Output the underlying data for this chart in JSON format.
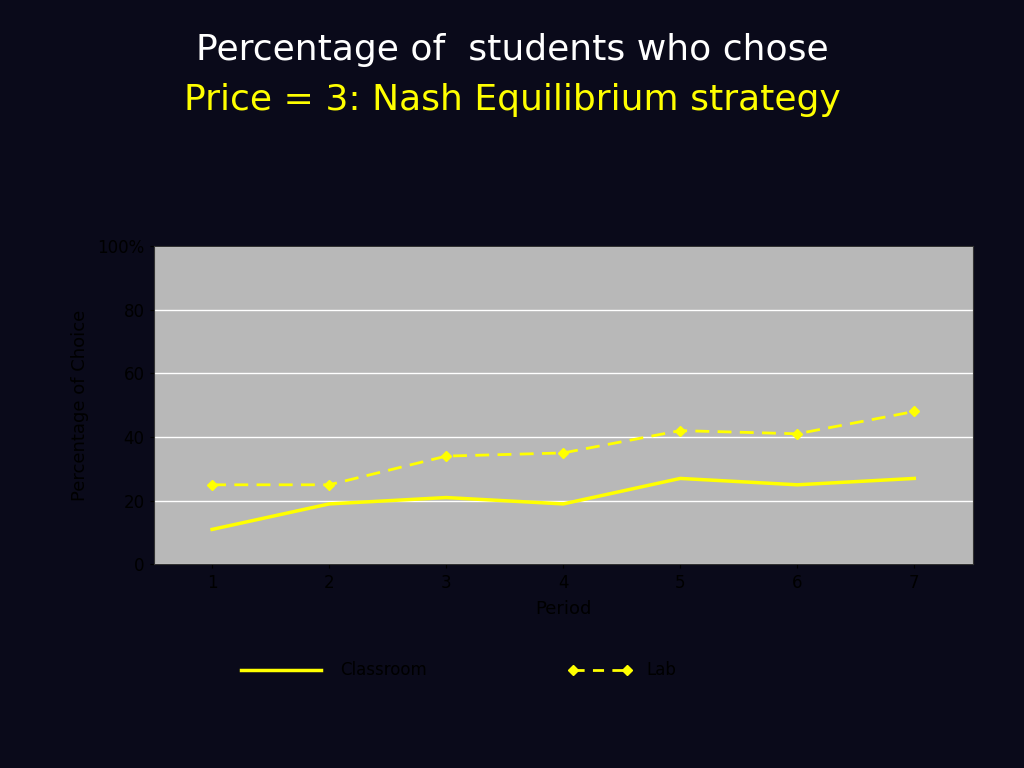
{
  "title_line1": "Percentage of  students who chose",
  "title_line2": "Price = 3: Nash Equilibrium strategy",
  "title_line1_color": "#ffffff",
  "title_line2_color": "#ffff00",
  "background_color": "#0a0a1a",
  "white_panel_color": "#ffffff",
  "plot_bg_color": "#b8b8b8",
  "legend_bg_color": "#c8c8c8",
  "xlabel": "Period",
  "ylabel": "Percentage of Choice",
  "periods": [
    1,
    2,
    3,
    4,
    5,
    6,
    7
  ],
  "classroom": [
    11,
    19,
    21,
    19,
    27,
    25,
    27
  ],
  "lab": [
    25,
    25,
    34,
    35,
    42,
    41,
    48
  ],
  "line_color": "#ffff00",
  "ylim": [
    0,
    100
  ],
  "xlim": [
    0.5,
    7.5
  ],
  "yticks": [
    0,
    20,
    40,
    60,
    80,
    100
  ],
  "xticks": [
    1,
    2,
    3,
    4,
    5,
    6,
    7
  ],
  "title_fontsize": 26,
  "axis_label_fontsize": 13,
  "tick_fontsize": 12,
  "legend_fontsize": 12
}
